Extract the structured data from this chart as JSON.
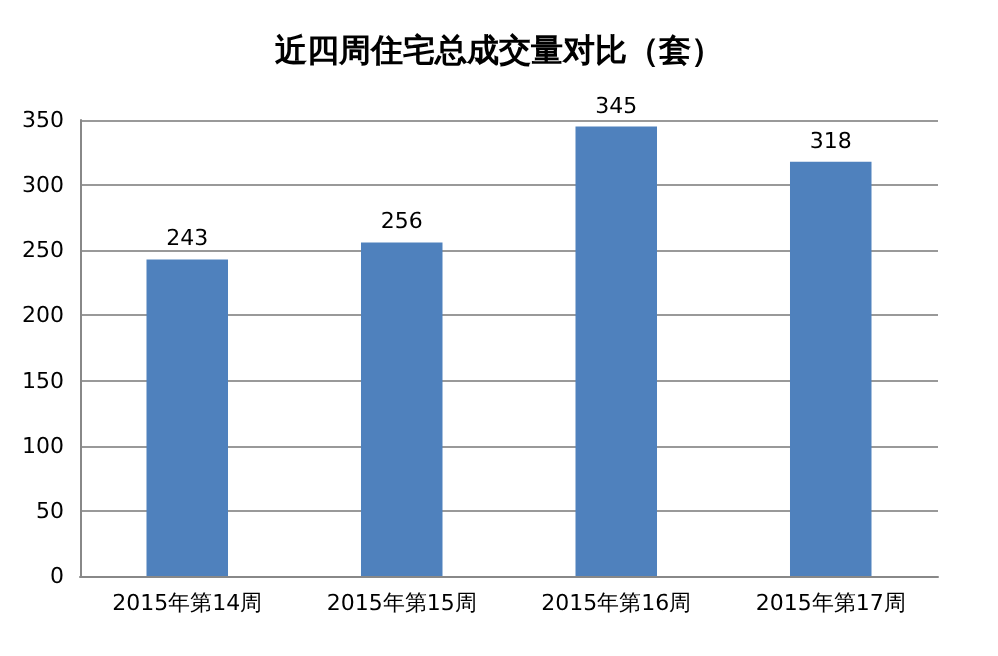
{
  "chart_data": {
    "type": "bar",
    "title": "近四周住宅总成交量对比（套）",
    "categories": [
      "2015年第14周",
      "2015年第15周",
      "2015年第16周",
      "2015年第17周"
    ],
    "values": [
      243,
      256,
      345,
      318
    ],
    "color": "#4f81bd",
    "ylim": [
      0,
      350
    ],
    "yticks": [
      0,
      50,
      100,
      150,
      200,
      250,
      300,
      350
    ],
    "grid": true,
    "data_labels": true
  }
}
